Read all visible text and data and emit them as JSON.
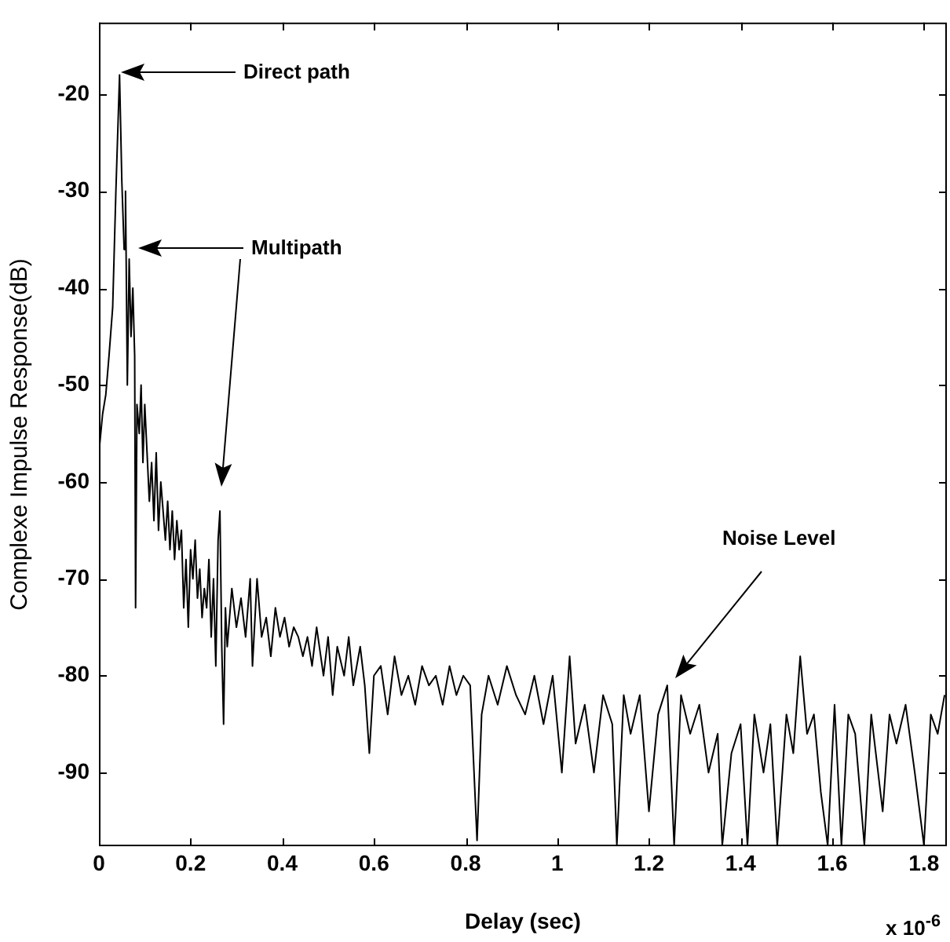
{
  "chart_data": {
    "type": "line",
    "xlabel": "Delay (sec)",
    "ylabel": "Complexe Impulse Response(dB)",
    "xlim": [
      0,
      1.85
    ],
    "ylim": [
      -97.6,
      -12.6
    ],
    "xticks": [
      0,
      0.2,
      0.4,
      0.6,
      0.8,
      1,
      1.2,
      1.4,
      1.6,
      1.8
    ],
    "yticks": [
      -90,
      -80,
      -70,
      -60,
      -50,
      -40,
      -30,
      -20
    ],
    "grid": false,
    "legend": false,
    "annotations": [
      "Direct path",
      "Multipath",
      "Noise Level",
      "x 10$^{-6}$"
    ],
    "series": [
      {
        "color": "#000000",
        "x": [
          0,
          0.008,
          0.015,
          0.022,
          0.03,
          0.037,
          0.045,
          0.05,
          0.055,
          0.058,
          0.062,
          0.066,
          0.07,
          0.074,
          0.078,
          0.08,
          0.083,
          0.088,
          0.092,
          0.096,
          0.1,
          0.105,
          0.11,
          0.115,
          0.12,
          0.125,
          0.13,
          0.135,
          0.14,
          0.145,
          0.15,
          0.155,
          0.16,
          0.165,
          0.17,
          0.175,
          0.18,
          0.185,
          0.19,
          0.195,
          0.2,
          0.205,
          0.21,
          0.215,
          0.22,
          0.225,
          0.23,
          0.235,
          0.24,
          0.245,
          0.25,
          0.255,
          0.26,
          0.264,
          0.268,
          0.272,
          0.276,
          0.28,
          0.29,
          0.3,
          0.31,
          0.32,
          0.33,
          0.335,
          0.345,
          0.355,
          0.365,
          0.375,
          0.385,
          0.395,
          0.405,
          0.415,
          0.425,
          0.435,
          0.445,
          0.455,
          0.465,
          0.475,
          0.49,
          0.5,
          0.51,
          0.52,
          0.535,
          0.545,
          0.555,
          0.57,
          0.58,
          0.59,
          0.6,
          0.615,
          0.63,
          0.645,
          0.66,
          0.675,
          0.69,
          0.705,
          0.72,
          0.735,
          0.75,
          0.765,
          0.78,
          0.795,
          0.81,
          0.825,
          0.835,
          0.85,
          0.87,
          0.89,
          0.91,
          0.93,
          0.95,
          0.97,
          0.99,
          1.01,
          1.027,
          1.04,
          1.06,
          1.08,
          1.1,
          1.12,
          1.13,
          1.145,
          1.16,
          1.18,
          1.2,
          1.22,
          1.24,
          1.255,
          1.27,
          1.29,
          1.31,
          1.33,
          1.35,
          1.36,
          1.38,
          1.4,
          1.415,
          1.43,
          1.45,
          1.465,
          1.48,
          1.5,
          1.515,
          1.53,
          1.545,
          1.56,
          1.575,
          1.59,
          1.605,
          1.62,
          1.635,
          1.65,
          1.67,
          1.685,
          1.7,
          1.71,
          1.725,
          1.74,
          1.76,
          1.78,
          1.8,
          1.815,
          1.83,
          1.845
        ],
        "values": [
          -57,
          -53,
          -51,
          -47,
          -42,
          -30,
          -18,
          -29,
          -36,
          -30,
          -50,
          -37,
          -45,
          -40,
          -47,
          -73,
          -52,
          -55,
          -50,
          -58,
          -52,
          -57,
          -62,
          -58,
          -64,
          -57,
          -65,
          -60,
          -63,
          -66,
          -62,
          -67,
          -63,
          -68,
          -64,
          -67,
          -65,
          -73,
          -68,
          -75,
          -67,
          -70,
          -66,
          -72,
          -69,
          -74,
          -71,
          -73,
          -68,
          -76,
          -70,
          -79,
          -66,
          -63,
          -77,
          -85,
          -73,
          -77,
          -71,
          -75,
          -72,
          -76,
          -70,
          -79,
          -70,
          -76,
          -74,
          -78,
          -73,
          -76,
          -74,
          -77,
          -75,
          -76,
          -78,
          -76,
          -79,
          -75,
          -80,
          -76,
          -82,
          -77,
          -80,
          -76,
          -81,
          -77,
          -81,
          -88,
          -80,
          -79,
          -84,
          -78,
          -82,
          -80,
          -83,
          -79,
          -81,
          -80,
          -83,
          -79,
          -82,
          -80,
          -81,
          -97,
          -84,
          -80,
          -83,
          -79,
          -82,
          -84,
          -80,
          -85,
          -80,
          -90,
          -78,
          -87,
          -83,
          -90,
          -82,
          -85,
          -97.5,
          -82,
          -86,
          -82,
          -94,
          -84,
          -81,
          -97.5,
          -82,
          -86,
          -83,
          -90,
          -86,
          -97.5,
          -88,
          -85,
          -97.5,
          -84,
          -90,
          -85,
          -97.5,
          -84,
          -88,
          -78,
          -86,
          -84,
          -92,
          -97.5,
          -83,
          -97.5,
          -84,
          -86,
          -97.5,
          -84,
          -90,
          -94,
          -84,
          -87,
          -83,
          -90,
          -97.5,
          -84,
          -86,
          -82
        ]
      }
    ]
  }
}
